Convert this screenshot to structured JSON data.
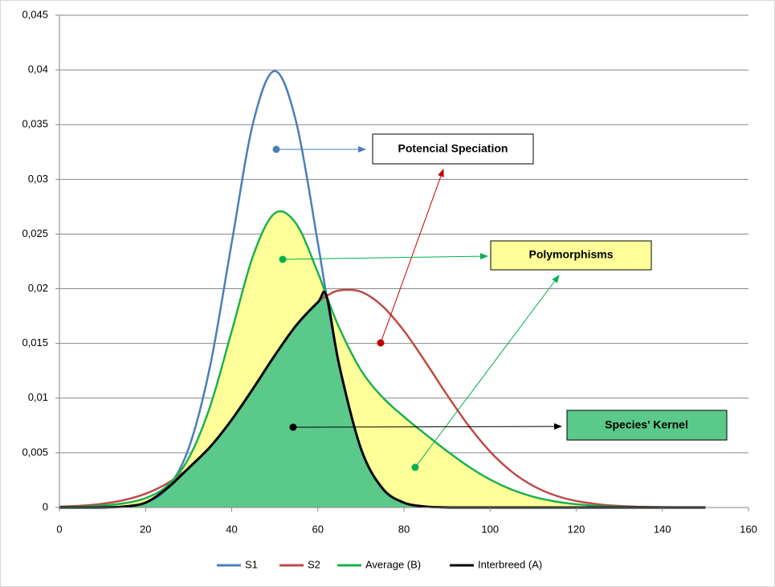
{
  "chart_data": {
    "type": "line",
    "x": [
      0,
      5,
      10,
      15,
      20,
      25,
      30,
      35,
      40,
      45,
      50,
      55,
      60,
      62,
      65,
      70,
      75,
      80,
      85,
      90,
      95,
      100,
      105,
      110,
      115,
      120,
      125,
      130,
      135,
      140,
      145,
      150
    ],
    "series": [
      {
        "name": "S1",
        "color": "#4a7ebb",
        "values": [
          0,
          1.6e-06,
          1.34e-05,
          8.73e-05,
          0.000443,
          0.001753,
          0.005399,
          0.012952,
          0.024197,
          0.035207,
          0.039894,
          0.035207,
          0.024197,
          0.019419,
          0.012952,
          0.005399,
          0.001753,
          0.000443,
          8.73e-05,
          1.34e-05,
          1.6e-06,
          0,
          0,
          0,
          0,
          0,
          0,
          0,
          0,
          0,
          0,
          0
        ]
      },
      {
        "name": "S2",
        "color": "#be4b48",
        "values": [
          7.3e-05,
          0.000163,
          0.000344,
          0.000679,
          0.001261,
          0.0022,
          0.003604,
          0.005545,
          0.008021,
          0.010893,
          0.013901,
          0.016662,
          0.018762,
          0.019333,
          0.019847,
          0.019724,
          0.018413,
          0.016149,
          0.013305,
          0.010297,
          0.007486,
          0.005113,
          0.003281,
          0.001978,
          0.00112,
          0.000595,
          0.000298,
          0.00014,
          6.16e-05,
          2.55e-05,
          9.9e-06,
          3.6e-06
        ]
      },
      {
        "name": "Average (B)",
        "color": "#1cb04f",
        "fill": "#ffff99",
        "values": [
          3.66e-05,
          8.23e-05,
          0.000179,
          0.000383,
          0.000852,
          0.001977,
          0.004502,
          0.009249,
          0.016109,
          0.02305,
          0.026898,
          0.025935,
          0.02148,
          0.019376,
          0.0164,
          0.012562,
          0.010083,
          0.008296,
          0.006696,
          0.005155,
          0.003744,
          0.002557,
          0.001641,
          0.000989,
          0.00056,
          0.000298,
          0.000149,
          7e-05,
          3.08e-05,
          1.28e-05,
          5e-06,
          1.8e-06
        ]
      },
      {
        "name": "Interbreed (A)",
        "color": "#000000",
        "fill": "#5ac98a",
        "values": [
          0,
          1.6e-06,
          1.34e-05,
          8.73e-05,
          0.000443,
          0.001753,
          0.003604,
          0.005545,
          0.008021,
          0.010893,
          0.013901,
          0.016662,
          0.018762,
          0.019333,
          0.012952,
          0.005399,
          0.001753,
          0.000443,
          8.73e-05,
          1.34e-05,
          1.6e-06,
          0,
          0,
          0,
          0,
          0,
          0,
          0,
          0,
          0,
          0,
          0
        ]
      }
    ],
    "xlim": [
      0,
      160
    ],
    "xticks": [
      0,
      20,
      40,
      60,
      80,
      100,
      120,
      140,
      160
    ],
    "ylim": [
      0,
      0.045
    ],
    "yticks": [
      0,
      {
        "value": 0.005,
        "label": "0,005"
      },
      {
        "value": 0.01,
        "label": "0,01"
      },
      {
        "value": 0.015,
        "label": "0,015"
      },
      {
        "value": 0.02,
        "label": "0,02"
      },
      {
        "value": 0.025,
        "label": "0,025"
      },
      {
        "value": 0.03,
        "label": "0,03"
      },
      {
        "value": 0.035,
        "label": "0,035"
      },
      {
        "value": 0.04,
        "label": "0,04"
      },
      {
        "value": 0.045,
        "label": "0,045"
      }
    ],
    "grid": true,
    "legend": "bottom",
    "annotations": [
      "Potencial Speciation",
      "Polymorphisms",
      "Species' Kernel"
    ]
  }
}
